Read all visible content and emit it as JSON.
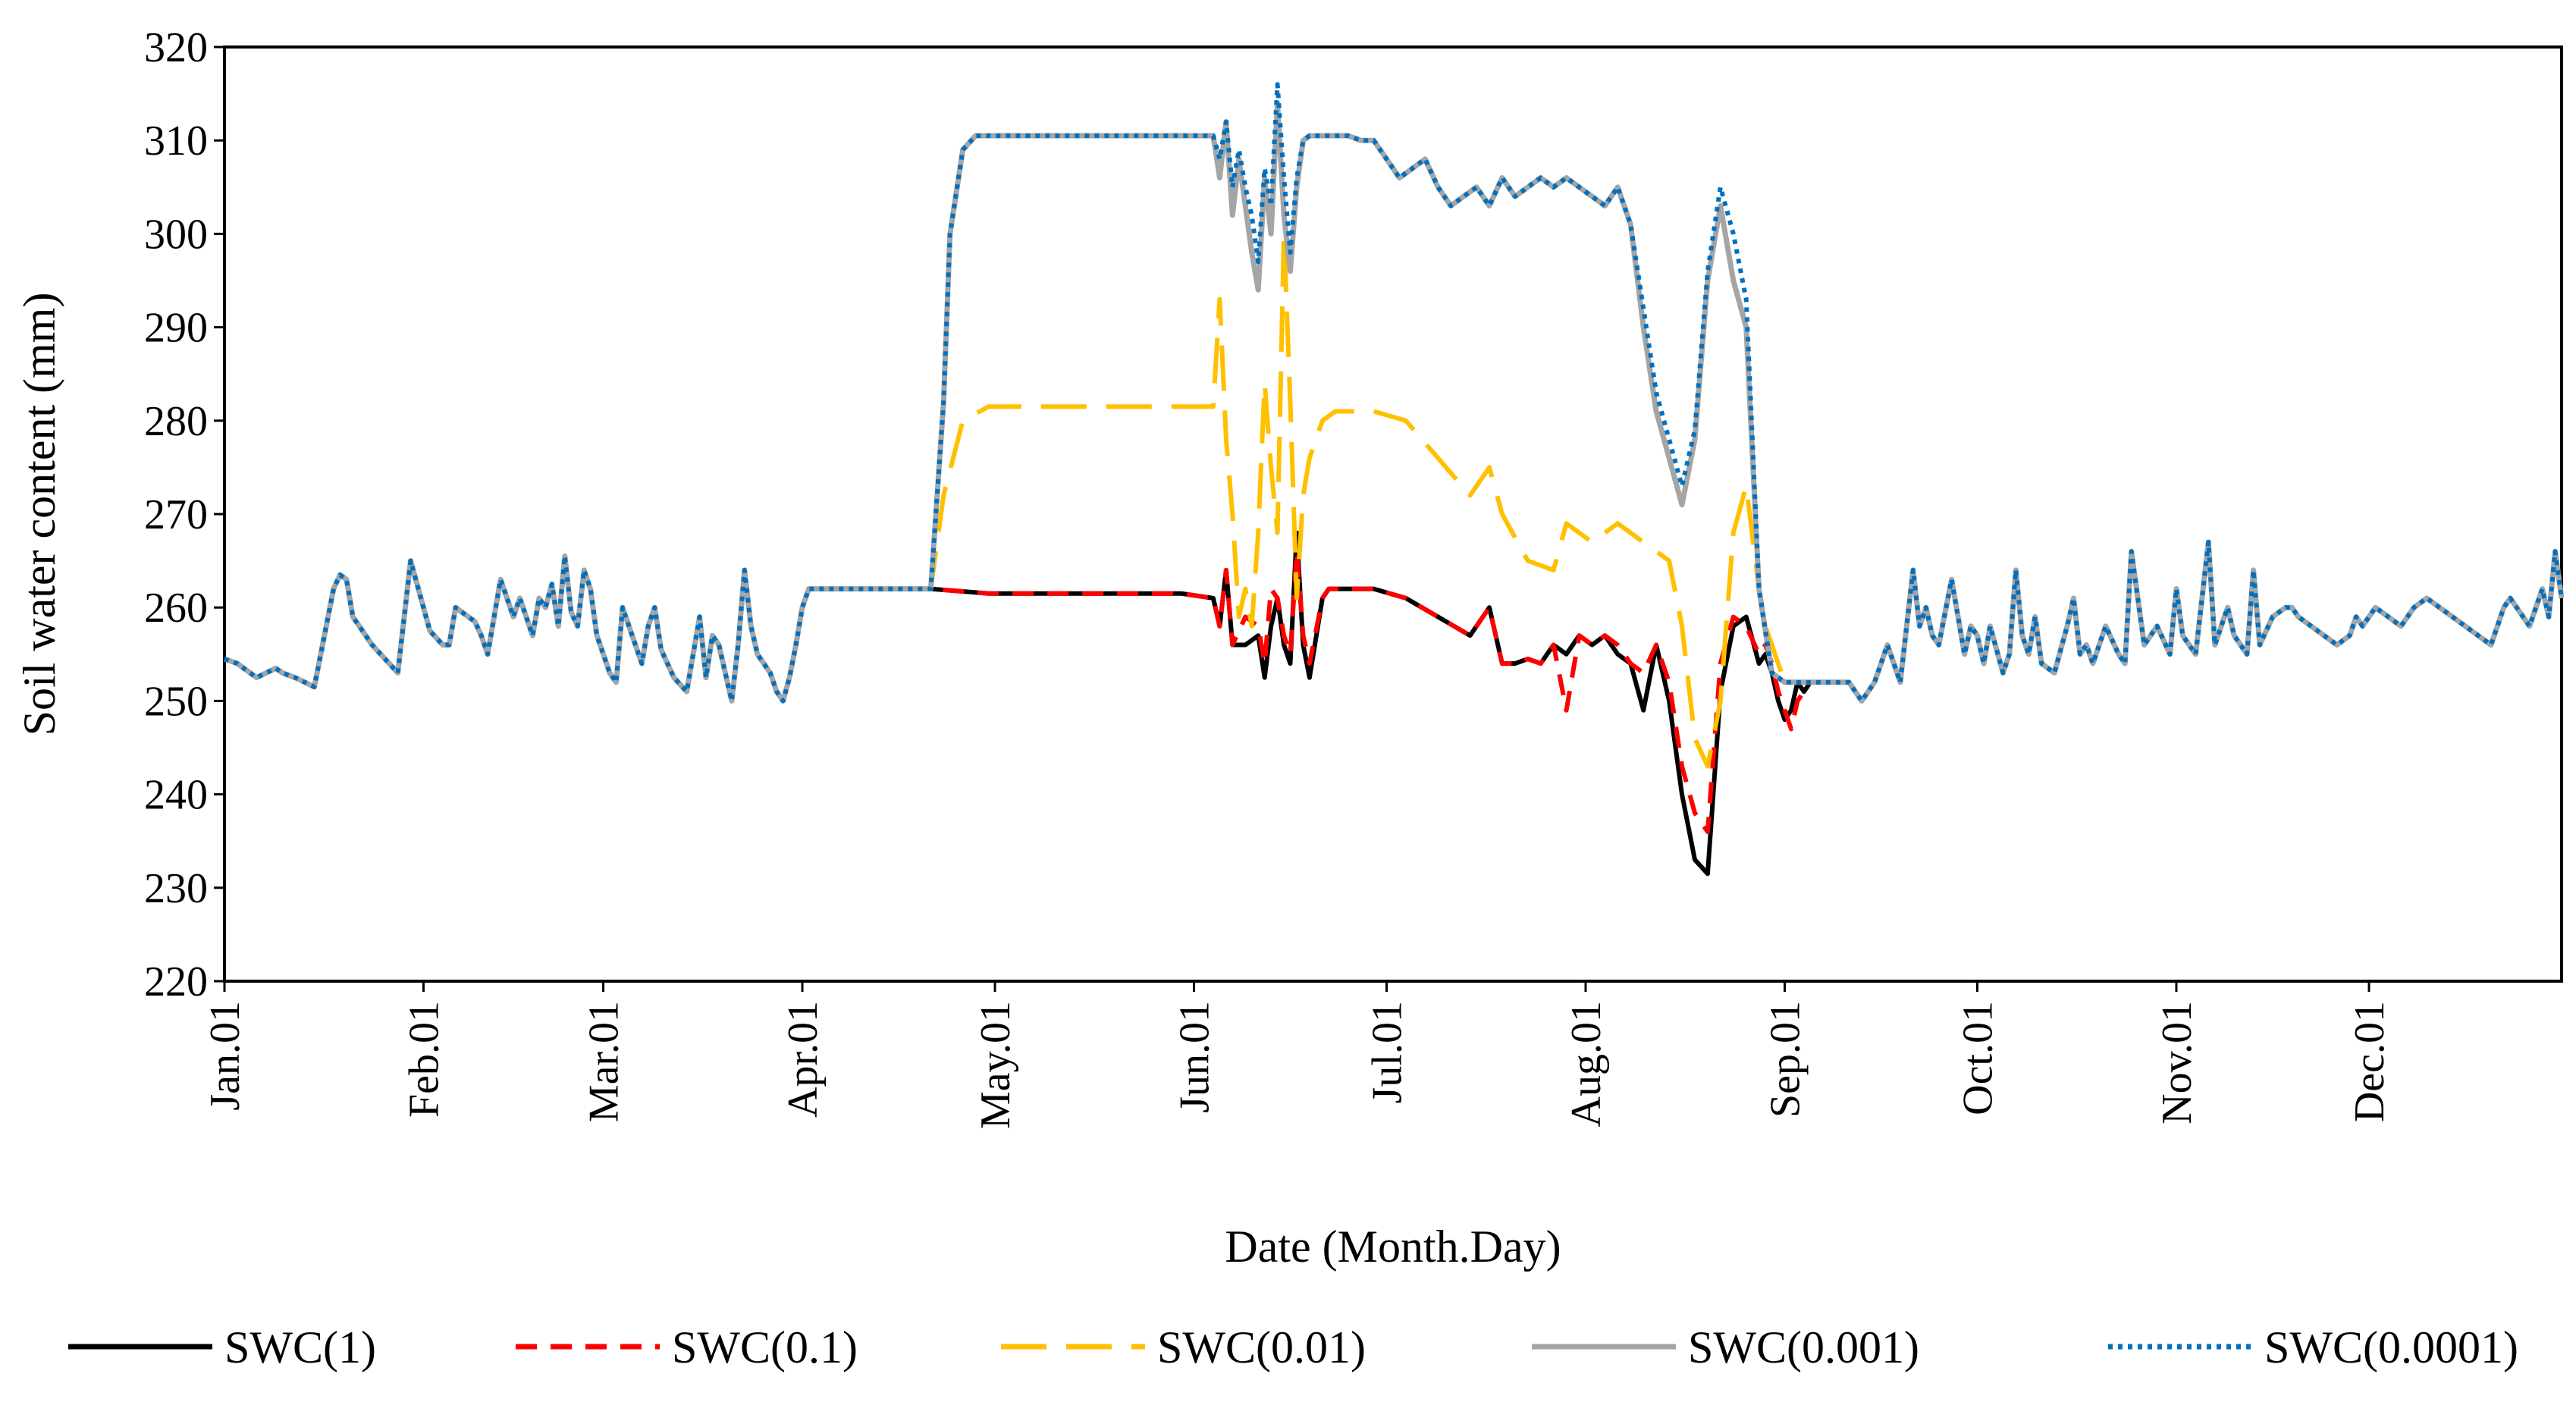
{
  "chart_data": {
    "type": "line",
    "title": "",
    "xlabel": "Date (Month.Day)",
    "ylabel": "Soil water content (mm)",
    "ylim": [
      220,
      320
    ],
    "yticks": [
      220,
      230,
      240,
      250,
      260,
      270,
      280,
      290,
      300,
      310,
      320
    ],
    "xlim": [
      1,
      365
    ],
    "xticks": [
      {
        "day": 1,
        "label": "Jan.01"
      },
      {
        "day": 32,
        "label": "Feb.01"
      },
      {
        "day": 60,
        "label": "Mar.01"
      },
      {
        "day": 91,
        "label": "Apr.01"
      },
      {
        "day": 121,
        "label": "May.01"
      },
      {
        "day": 152,
        "label": "Jun.01"
      },
      {
        "day": 182,
        "label": "Jul.01"
      },
      {
        "day": 213,
        "label": "Aug.01"
      },
      {
        "day": 244,
        "label": "Sep.01"
      },
      {
        "day": 274,
        "label": "Oct.01"
      },
      {
        "day": 305,
        "label": "Nov.01"
      },
      {
        "day": 335,
        "label": "Dec.01"
      }
    ],
    "grid": false,
    "legend_position": "bottom",
    "base_series_x": [
      1,
      3,
      6,
      9,
      10,
      12,
      15,
      18,
      19,
      20,
      21,
      22,
      23,
      24,
      26,
      28,
      30,
      33,
      35,
      36,
      37,
      38,
      40,
      41,
      42,
      44,
      46,
      47,
      49,
      50,
      51,
      52,
      53,
      54,
      55,
      56,
      57,
      58,
      59,
      60,
      61,
      62,
      63,
      64,
      66,
      67,
      68,
      69,
      70,
      71,
      73,
      75,
      76,
      77,
      78,
      80,
      81,
      82,
      83,
      84,
      86,
      87,
      88,
      89,
      90,
      91,
      92,
      93,
      94,
      95,
      96,
      97,
      98,
      99,
      100,
      101,
      102,
      103,
      104,
      105,
      106,
      108,
      110,
      111
    ],
    "base_series_y": [
      254.5,
      254,
      252.5,
      253.5,
      253,
      252.5,
      251.5,
      262,
      263.5,
      263,
      259,
      258,
      257,
      256,
      254.5,
      253,
      265,
      257.5,
      256,
      256,
      260,
      259.5,
      258.5,
      257,
      255,
      263,
      259,
      261,
      257,
      261,
      260,
      262.5,
      258,
      265.5,
      259.5,
      258,
      264,
      262,
      257,
      255,
      253,
      252,
      260,
      258,
      254,
      258,
      260,
      255.5,
      254,
      252.5,
      251,
      259,
      252.5,
      257,
      256,
      250,
      256,
      264,
      258,
      255,
      253,
      251,
      250,
      252.5,
      256,
      260,
      262,
      262,
      262,
      262,
      262,
      262,
      262,
      262,
      262,
      262,
      262,
      262,
      262,
      262,
      262,
      262,
      262,
      262
    ],
    "late_series_x": [
      254,
      256,
      258,
      260,
      262,
      264,
      265,
      266,
      267,
      268,
      270,
      272,
      273,
      274,
      275,
      276,
      278,
      279,
      280,
      281,
      282,
      283,
      284,
      286,
      288,
      289,
      290,
      291,
      292,
      294,
      296,
      297,
      298,
      300,
      302,
      304,
      305,
      306,
      308,
      310,
      311,
      312,
      313,
      314,
      316,
      317,
      318,
      320,
      322,
      323,
      324,
      326,
      328,
      330,
      332,
      333,
      334,
      335,
      336,
      338,
      340,
      342,
      344,
      346,
      348,
      350,
      352,
      354,
      356,
      357,
      358,
      360,
      362,
      363,
      364,
      365
    ],
    "late_series_y": [
      252,
      250,
      252,
      256,
      252,
      264,
      258,
      260,
      257,
      256,
      263,
      255,
      258,
      257,
      254,
      258,
      253,
      255,
      264,
      257,
      255,
      259,
      254,
      253,
      258,
      261,
      255,
      256,
      254,
      258,
      255,
      254,
      266,
      256,
      258,
      255,
      262,
      257,
      255,
      267,
      256,
      258,
      260,
      257,
      255,
      264,
      256,
      259,
      260,
      260,
      259,
      258,
      257,
      256,
      257,
      259,
      258,
      259,
      260,
      259,
      258,
      260,
      261,
      260,
      259,
      258,
      257,
      256,
      260,
      261,
      260,
      258,
      262,
      259,
      266,
      261
    ],
    "series": [
      {
        "name": "SWC(1)",
        "color": "#000000",
        "style": "solid",
        "mid_x": [
          111,
          120,
          130,
          140,
          150,
          155,
          156,
          157,
          158,
          160,
          162,
          163,
          164,
          165,
          166,
          167,
          168,
          169,
          170,
          172,
          173,
          175,
          176,
          180,
          185,
          190,
          195,
          198,
          200,
          202,
          204,
          206,
          208,
          210,
          212,
          214,
          216,
          218,
          220,
          222,
          224,
          226,
          228,
          230,
          232,
          234,
          236,
          238,
          240,
          241,
          242,
          243,
          244,
          245,
          246,
          247,
          248,
          249,
          250,
          252,
          253,
          254
        ],
        "mid_y": [
          262,
          261.5,
          261.5,
          261.5,
          261.5,
          261,
          258,
          264,
          256,
          256,
          257,
          252.5,
          258,
          261,
          256,
          254,
          268,
          256,
          252.5,
          261,
          262,
          262,
          262,
          262,
          261,
          259,
          257,
          260,
          254,
          254,
          254.5,
          254,
          256,
          255,
          257,
          256,
          257,
          255,
          254,
          249,
          256,
          250,
          240,
          233,
          231.5,
          251,
          258,
          259,
          254,
          255,
          253,
          250,
          248,
          249,
          252,
          251,
          252,
          252,
          252,
          252,
          252,
          252
        ]
      },
      {
        "name": "SWC(0.1)",
        "color": "#ff0000",
        "style": "dashed",
        "mid_x": [
          111,
          120,
          130,
          140,
          150,
          155,
          156,
          157,
          158,
          160,
          162,
          163,
          164,
          165,
          166,
          167,
          168,
          169,
          170,
          172,
          173,
          175,
          176,
          180,
          185,
          190,
          195,
          198,
          200,
          202,
          204,
          206,
          208,
          210,
          212,
          214,
          216,
          218,
          220,
          222,
          224,
          226,
          228,
          230,
          232,
          234,
          236,
          238,
          240,
          241,
          242,
          243,
          244,
          245,
          246,
          247,
          248,
          249,
          250,
          252,
          253,
          254
        ],
        "mid_y": [
          262,
          261.5,
          261.5,
          261.5,
          261.5,
          261,
          258,
          264,
          256,
          259,
          258,
          254,
          262,
          261,
          257,
          255,
          266,
          257,
          254,
          261,
          262,
          262,
          262,
          262,
          261,
          259,
          257,
          260,
          254,
          254,
          254.5,
          254,
          256,
          249,
          257,
          256,
          257,
          256,
          254,
          253,
          256,
          252,
          243,
          238,
          236,
          254,
          259,
          258,
          255,
          256,
          254,
          251,
          249,
          247,
          250,
          251,
          252,
          252,
          252,
          252,
          252,
          252
        ]
      },
      {
        "name": "SWC(0.01)",
        "color": "#ffc000",
        "style": "longdash",
        "mid_x": [
          111,
          113,
          116,
          120,
          125,
          130,
          135,
          140,
          145,
          150,
          155,
          156,
          157,
          158,
          159,
          160,
          161,
          162,
          163,
          164,
          165,
          166,
          167,
          168,
          169,
          170,
          172,
          174,
          176,
          178,
          180,
          185,
          190,
          195,
          198,
          200,
          204,
          208,
          210,
          214,
          218,
          222,
          226,
          228,
          230,
          232,
          234,
          236,
          238,
          240,
          241,
          242,
          243,
          244,
          245,
          246,
          247,
          248,
          249,
          250,
          252,
          253,
          254
        ],
        "mid_y": [
          262,
          272,
          280,
          281.5,
          281.5,
          281.5,
          281.5,
          281.5,
          281.5,
          281.5,
          281.5,
          293,
          278,
          270,
          259,
          262,
          258,
          268,
          284,
          275,
          268,
          300,
          282,
          261,
          272,
          276,
          280,
          281,
          281,
          281,
          281,
          280,
          276,
          272,
          275,
          270,
          265,
          264,
          269,
          267,
          269,
          267,
          265,
          258,
          246,
          243,
          250,
          268,
          273,
          262,
          258,
          256,
          254,
          252,
          252,
          252,
          252,
          252,
          252,
          252,
          252,
          252,
          252
        ]
      },
      {
        "name": "SWC(0.001)",
        "color": "#a5a5a5",
        "style": "solid",
        "mid_x": [
          111,
          113,
          114,
          116,
          118,
          120,
          125,
          130,
          135,
          140,
          145,
          150,
          155,
          156,
          157,
          158,
          159,
          160,
          161,
          162,
          163,
          164,
          165,
          166,
          167,
          168,
          169,
          170,
          171,
          172,
          174,
          176,
          178,
          180,
          182,
          184,
          186,
          188,
          190,
          192,
          194,
          196,
          198,
          200,
          202,
          204,
          206,
          208,
          210,
          212,
          214,
          216,
          218,
          220,
          222,
          224,
          226,
          228,
          230,
          232,
          234,
          236,
          238,
          240,
          242,
          244,
          245,
          246,
          247,
          248,
          249,
          250,
          252,
          253,
          254
        ],
        "mid_y": [
          262,
          282,
          300,
          309,
          310.5,
          310.5,
          310.5,
          310.5,
          310.5,
          310.5,
          310.5,
          310.5,
          310.5,
          306,
          312,
          302,
          308,
          303,
          298,
          294,
          306,
          300,
          314,
          302,
          296,
          305,
          310,
          310.5,
          310.5,
          310.5,
          310.5,
          310.5,
          310,
          310,
          308,
          306,
          307,
          308,
          305,
          303,
          304,
          305,
          303,
          306,
          304,
          305,
          306,
          305,
          306,
          305,
          304,
          303,
          305,
          301,
          290,
          281,
          276,
          271,
          278,
          295,
          303,
          295,
          290,
          262,
          253,
          252,
          252,
          252,
          252,
          252,
          252,
          252,
          252,
          252,
          252
        ]
      },
      {
        "name": "SWC(0.0001)",
        "color": "#0070c0",
        "style": "dotted",
        "mid_x": [
          111,
          113,
          114,
          116,
          118,
          120,
          125,
          130,
          135,
          140,
          145,
          150,
          155,
          156,
          157,
          158,
          159,
          160,
          161,
          162,
          163,
          164,
          165,
          166,
          167,
          168,
          169,
          170,
          171,
          172,
          174,
          176,
          178,
          180,
          182,
          184,
          186,
          188,
          190,
          192,
          194,
          196,
          198,
          200,
          202,
          204,
          206,
          208,
          210,
          212,
          214,
          216,
          218,
          220,
          222,
          224,
          226,
          228,
          230,
          232,
          234,
          236,
          238,
          240,
          242,
          244,
          245,
          246,
          247,
          248,
          249,
          250,
          252,
          253,
          254
        ],
        "mid_y": [
          262,
          282,
          300,
          309,
          310.5,
          310.5,
          310.5,
          310.5,
          310.5,
          310.5,
          310.5,
          310.5,
          310.5,
          308,
          312,
          305,
          309,
          305,
          302,
          297,
          307,
          303,
          316,
          306,
          298,
          306,
          310,
          310.5,
          310.5,
          310.5,
          310.5,
          310.5,
          310,
          310,
          308,
          306,
          307,
          308,
          305,
          303,
          304,
          305,
          303,
          306,
          304,
          305,
          306,
          305,
          306,
          305,
          304,
          303,
          305,
          301,
          292,
          283,
          278,
          273,
          279,
          296,
          305,
          300,
          293,
          262,
          253,
          252,
          252,
          252,
          252,
          252,
          252,
          252,
          252,
          252,
          252
        ]
      }
    ]
  }
}
